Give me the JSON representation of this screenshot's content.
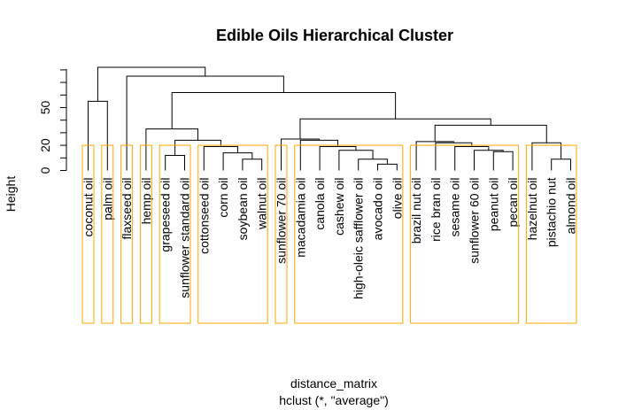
{
  "chart_data": {
    "type": "dendrogram",
    "title": "Edible Oils Hierarchical Cluster",
    "ylabel": "Height",
    "xlabel": "distance_matrix",
    "sublabel": "hclust (*, \"average\")",
    "ylim": [
      0,
      70
    ],
    "yticks": [
      0,
      20,
      50
    ],
    "cluster_box_color": "#ffa500",
    "leaves": [
      "coconut oil",
      "palm oil",
      "flaxseed oil",
      "hemp oil",
      "grapeseed oil",
      "sunflower standard oil",
      "cottonseed oil",
      "corn oil",
      "soybean oil",
      "walnut oil",
      "sunflower 70 oil",
      "macadamia oil",
      "canola oil",
      "cashew oil",
      "high-oleic safflower oil",
      "avocado oil",
      "olive oil",
      "brazil nut oil",
      "rice bran oil",
      "sesame oil",
      "sunflower 60 oil",
      "peanut oil",
      "pecan oil",
      "hazelnut oil",
      "pistachio nut",
      "almond oil"
    ],
    "merges": [
      {
        "a": "L:4",
        "b": "L:5",
        "height": 12
      },
      {
        "a": "L:8",
        "b": "L:9",
        "height": 9
      },
      {
        "a": "L:7",
        "b": "N:1",
        "height": 14
      },
      {
        "a": "L:6",
        "b": "N:2",
        "height": 19
      },
      {
        "a": "N:0",
        "b": "N:3",
        "height": 24
      },
      {
        "a": "L:3",
        "b": "N:4",
        "height": 33
      },
      {
        "a": "L:15",
        "b": "L:16",
        "height": 5
      },
      {
        "a": "L:14",
        "b": "N:6",
        "height": 9
      },
      {
        "a": "L:13",
        "b": "N:7",
        "height": 16
      },
      {
        "a": "L:12",
        "b": "N:8",
        "height": 19
      },
      {
        "a": "L:11",
        "b": "N:9",
        "height": 24
      },
      {
        "a": "L:10",
        "b": "N:10",
        "height": 25
      },
      {
        "a": "L:21",
        "b": "L:22",
        "height": 15
      },
      {
        "a": "L:20",
        "b": "N:12",
        "height": 16
      },
      {
        "a": "L:19",
        "b": "N:13",
        "height": 19
      },
      {
        "a": "L:18",
        "b": "N:14",
        "height": 22
      },
      {
        "a": "L:17",
        "b": "N:15",
        "height": 23
      },
      {
        "a": "L:25",
        "b": "L:24",
        "height": 9
      },
      {
        "a": "L:23",
        "b": "N:17",
        "height": 22
      },
      {
        "a": "N:16",
        "b": "N:18",
        "height": 36
      },
      {
        "a": "N:11",
        "b": "N:19",
        "height": 41
      },
      {
        "a": "N:5",
        "b": "N:20",
        "height": 62
      },
      {
        "a": "L:2",
        "b": "N:21",
        "height": 75
      },
      {
        "a": "L:0",
        "b": "L:1",
        "height": 55
      },
      {
        "a": "N:23",
        "b": "N:22",
        "height": 82
      }
    ],
    "clusters": [
      {
        "start": 0,
        "end": 0
      },
      {
        "start": 1,
        "end": 1
      },
      {
        "start": 2,
        "end": 2
      },
      {
        "start": 3,
        "end": 3
      },
      {
        "start": 4,
        "end": 5
      },
      {
        "start": 6,
        "end": 9
      },
      {
        "start": 10,
        "end": 10
      },
      {
        "start": 11,
        "end": 16
      },
      {
        "start": 17,
        "end": 22
      },
      {
        "start": 23,
        "end": 25
      }
    ],
    "cut_height": 20
  }
}
